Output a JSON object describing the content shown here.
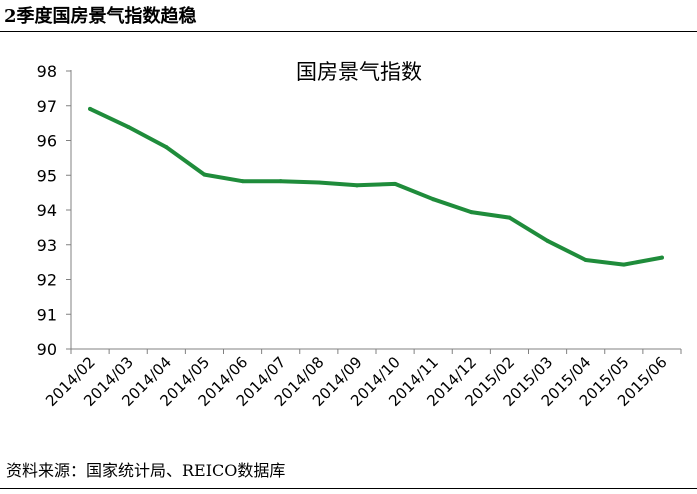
{
  "header": {
    "title": "2季度国房景气指数趋稳"
  },
  "footer": {
    "source": "资料来源：国家统计局、REICO数据库"
  },
  "colors": {
    "line": "#1f8c3b",
    "axis": "#808080",
    "text": "#000000"
  },
  "chart_data": {
    "type": "line",
    "title": "国房景气指数",
    "xlabel": "",
    "ylabel": "",
    "ylim": [
      90,
      98
    ],
    "yticks": [
      90,
      91,
      92,
      93,
      94,
      95,
      96,
      97,
      98
    ],
    "grid": false,
    "legend": "none",
    "categories": [
      "2014/02",
      "2014/03",
      "2014/04",
      "2014/05",
      "2014/06",
      "2014/07",
      "2014/08",
      "2014/09",
      "2014/10",
      "2014/11",
      "2014/12",
      "2015/02",
      "2015/03",
      "2015/04",
      "2015/05",
      "2015/06"
    ],
    "series": [
      {
        "values": [
          96.91,
          96.39,
          95.81,
          95.02,
          94.83,
          94.83,
          94.79,
          94.71,
          94.75,
          94.31,
          93.94,
          93.78,
          93.11,
          92.56,
          92.43,
          92.63
        ]
      }
    ]
  }
}
